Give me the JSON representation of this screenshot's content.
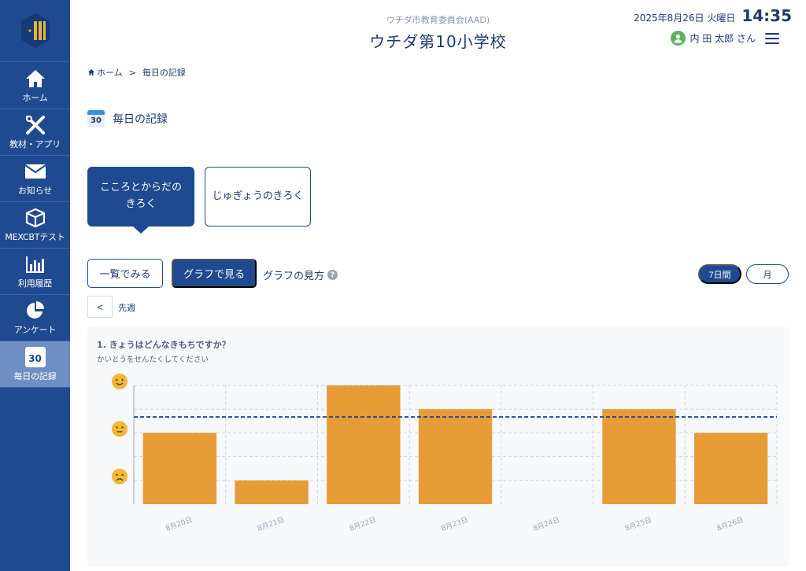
{
  "header": {
    "org": "ウチダ市教育委員会(AAD)",
    "school": "ウチダ第10小学校",
    "date": "2025年8月26日 火曜日",
    "time": "14:35",
    "user": "内 田 太郎 さん"
  },
  "sidebar": {
    "items": [
      {
        "label": "ホーム",
        "icon": "home-icon"
      },
      {
        "label": "教材・アプリ",
        "icon": "tools-icon"
      },
      {
        "label": "お知らせ",
        "icon": "mail-icon"
      },
      {
        "label": "MEXCBTテスト",
        "icon": "cube-icon"
      },
      {
        "label": "利用履歴",
        "icon": "bar-chart-icon"
      },
      {
        "label": "アンケート",
        "icon": "pie-chart-icon"
      },
      {
        "label": "毎日の記録",
        "icon": "calendar-icon",
        "badge": "30",
        "active": true
      }
    ]
  },
  "breadcrumb": {
    "home": "ホーム",
    "separator": ">",
    "current": "毎日の記録"
  },
  "page": {
    "title": "毎日の記録",
    "title_icon_badge": "30"
  },
  "tabs": [
    {
      "label": "こころとからだのきろく",
      "active": true
    },
    {
      "label": "じゅぎょうのきろく",
      "active": false
    }
  ],
  "view": {
    "list_label": "一覧でみる",
    "graph_label": "グラフで見る",
    "help_label": "グラフの見方",
    "help_icon": "?"
  },
  "period": {
    "week_label": "7日間",
    "month_label": "月"
  },
  "nav": {
    "prev_symbol": "<",
    "prev_label": "先週"
  },
  "colors": {
    "primary": "#1f4a8f",
    "bar": "#e89c38",
    "average_line": "#1f4a8f",
    "face": "#f2b935"
  },
  "chart_data": {
    "type": "bar",
    "title": "1. きょうはどんなきもちですか？",
    "subtitle": "かいとうをせんたくしてください",
    "categories": [
      "8月20日",
      "8月21日",
      "8月22日",
      "8月23日",
      "8月24日",
      "8月25日",
      "8月26日"
    ],
    "values": [
      2,
      0,
      4,
      3,
      null,
      3,
      2
    ],
    "ylim": [
      -1,
      4
    ],
    "y_icons": [
      {
        "value": 4,
        "icon": "happy-face-icon"
      },
      {
        "value": 2,
        "icon": "neutral-face-icon"
      },
      {
        "value": 0,
        "icon": "sad-face-icon"
      }
    ],
    "average_line": 2.67,
    "grid": true
  }
}
